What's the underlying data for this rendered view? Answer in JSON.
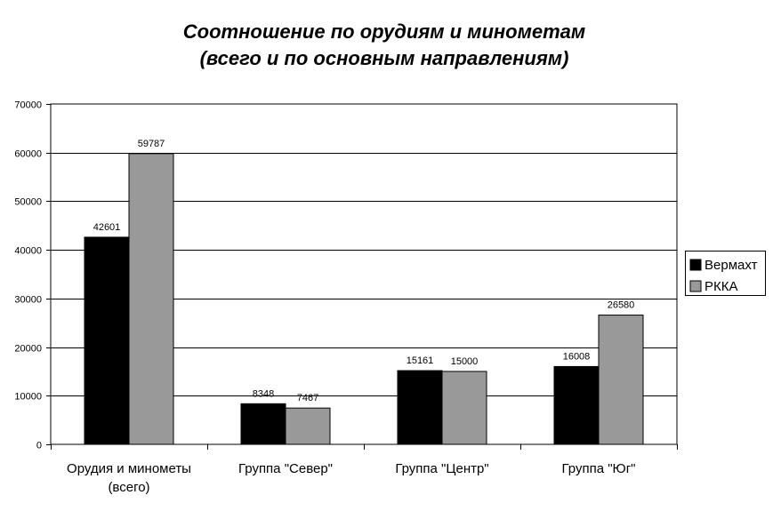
{
  "chart_data": {
    "type": "bar",
    "title": [
      "Соотношение по орудиям и минометам",
      "(всего и по основным направлениям)"
    ],
    "categories": [
      [
        "Орудия и минометы",
        "(всего)"
      ],
      [
        "Группа \"Север\""
      ],
      [
        "Группа \"Центр\""
      ],
      [
        "Группа \"Юг\""
      ]
    ],
    "series": [
      {
        "name": "Вермахт",
        "values": [
          42601,
          8348,
          15161,
          16008
        ],
        "color": "#000000"
      },
      {
        "name": "РККА",
        "values": [
          59787,
          7467,
          15000,
          26580
        ],
        "color": "#999999"
      }
    ],
    "ylim": [
      0,
      70000
    ],
    "yticks": [
      0,
      10000,
      20000,
      30000,
      40000,
      50000,
      60000,
      70000
    ],
    "grid": true,
    "legend_position": "right"
  }
}
